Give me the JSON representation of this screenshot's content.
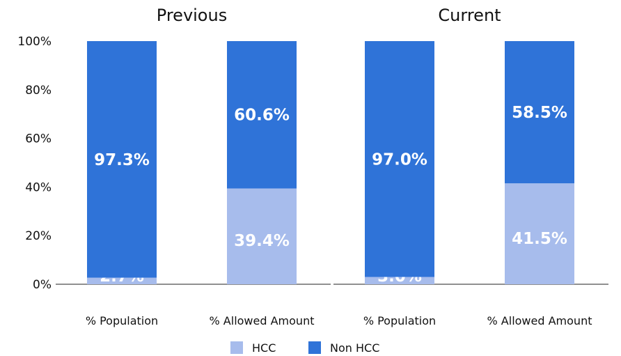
{
  "chart_data": {
    "type": "bar",
    "stacked": true,
    "groups": [
      {
        "title": "Previous",
        "categories": [
          "% Population",
          "% Allowed Amount"
        ],
        "series": [
          {
            "name": "HCC",
            "values": [
              2.7,
              39.4
            ],
            "labels": [
              "2.7%",
              "39.4%"
            ]
          },
          {
            "name": "Non HCC",
            "values": [
              97.3,
              60.6
            ],
            "labels": [
              "97.3%",
              "60.6%"
            ]
          }
        ]
      },
      {
        "title": "Current",
        "categories": [
          "% Population",
          "% Allowed Amount"
        ],
        "series": [
          {
            "name": "HCC",
            "values": [
              3.0,
              41.5
            ],
            "labels": [
              "3.0%",
              "41.5%"
            ]
          },
          {
            "name": "Non HCC",
            "values": [
              97.0,
              58.5
            ],
            "labels": [
              "97.0%",
              "58.5%"
            ]
          }
        ]
      }
    ],
    "y_ticks": [
      "0%",
      "20%",
      "40%",
      "60%",
      "80%",
      "100%"
    ],
    "ylim": [
      0,
      100
    ],
    "legend": {
      "position": "bottom",
      "items": [
        {
          "name": "HCC",
          "color": "#a7bcec"
        },
        {
          "name": "Non HCC",
          "color": "#2f73d8"
        }
      ]
    },
    "colors": {
      "HCC": "#a7bcec",
      "Non HCC": "#2f73d8"
    },
    "grid": false
  }
}
